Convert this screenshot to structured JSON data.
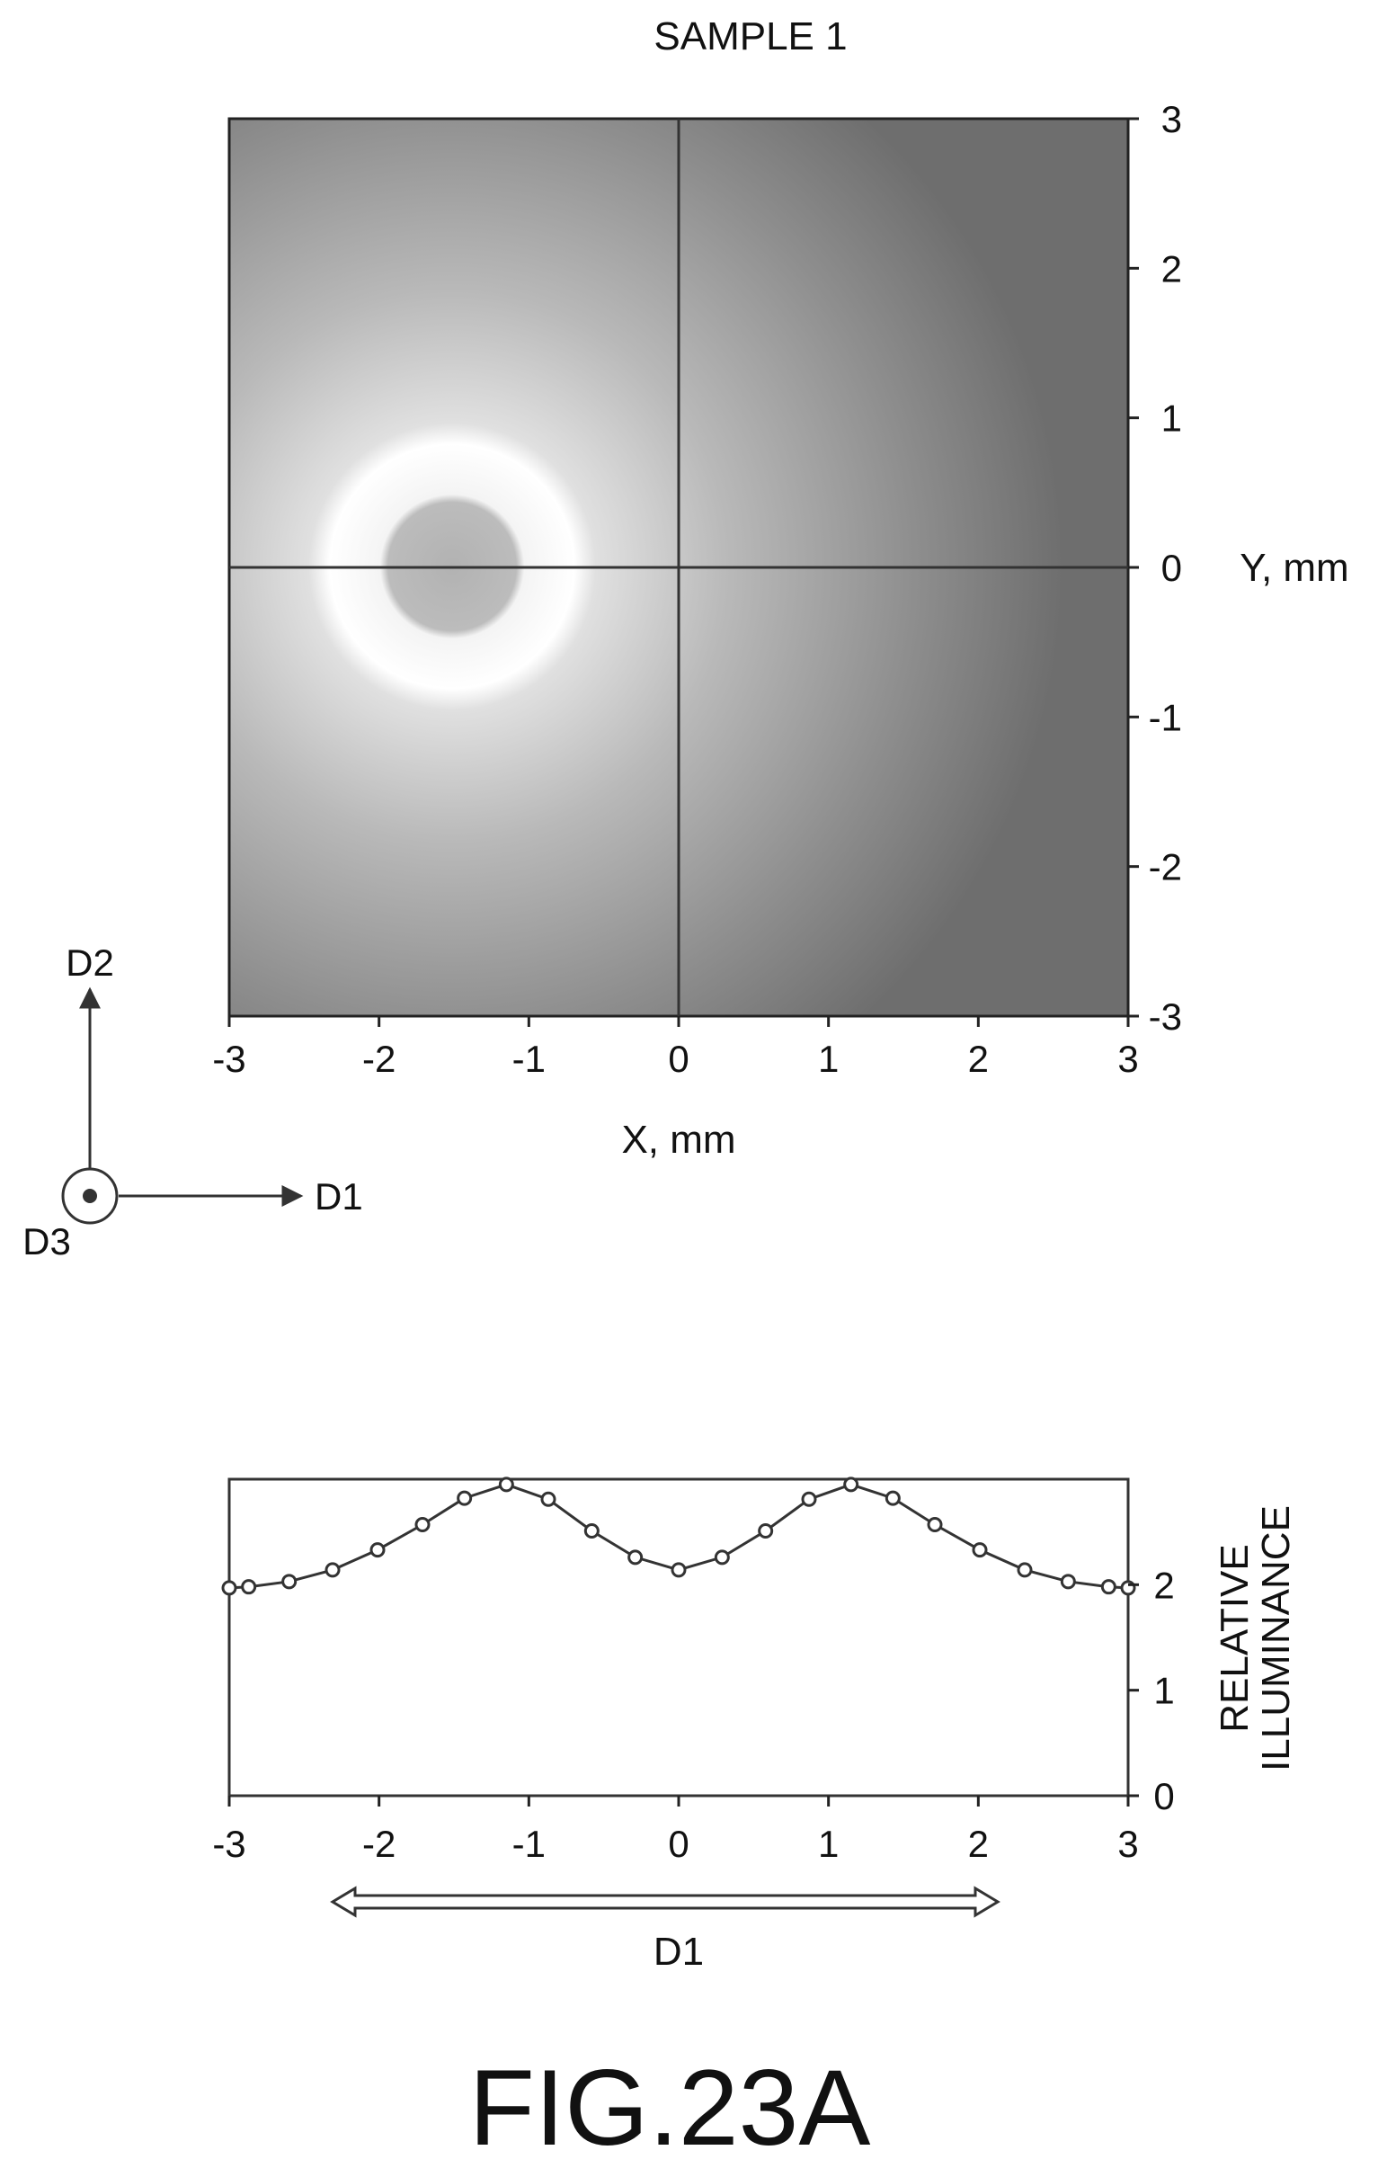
{
  "figure_title": "FIG.23A",
  "chart_data": [
    {
      "type": "heatmap",
      "title": "SAMPLE 1",
      "xlabel": "X, mm",
      "ylabel": "Y, mm",
      "xlim": [
        -3,
        3
      ],
      "ylim": [
        -3,
        3
      ],
      "xticks": [
        "-3",
        "-2",
        "-1",
        "0",
        "1",
        "2",
        "3"
      ],
      "yticks": [
        "3",
        "2",
        "1",
        "0",
        "-1",
        "-2",
        "-3"
      ],
      "description_of_pattern": {
        "ring_inner_radius_mm": 0.8,
        "ring_outer_radius_mm": 1.45,
        "center_level": "medium",
        "ring_level": "brightest",
        "edge_level": "darkest"
      },
      "crosshair": {
        "x": 0,
        "y": 0
      }
    },
    {
      "type": "line",
      "title": "",
      "xlabel": "",
      "ylabel": "RELATIVE\nILLUMINANCE",
      "ylabel_lines": [
        "RELATIVE",
        "ILLUMINANCE"
      ],
      "xlim": [
        -3,
        3
      ],
      "ylim": [
        0,
        3
      ],
      "xticks": [
        "-3",
        "-2",
        "-1",
        "0",
        "1",
        "2",
        "3"
      ],
      "yticks": [
        "2",
        "1",
        "0"
      ],
      "series": [
        {
          "name": "",
          "x": [
            -3.0,
            -2.87,
            -2.6,
            -2.31,
            -2.01,
            -1.71,
            -1.43,
            -1.15,
            -0.87,
            -0.58,
            -0.29,
            0.0,
            0.29,
            0.58,
            0.87,
            1.15,
            1.43,
            1.71,
            2.01,
            2.31,
            2.6,
            2.87,
            3.0
          ],
          "y": [
            1.97,
            1.98,
            2.03,
            2.14,
            2.33,
            2.57,
            2.82,
            2.95,
            2.81,
            2.51,
            2.26,
            2.14,
            2.26,
            2.51,
            2.81,
            2.95,
            2.82,
            2.57,
            2.33,
            2.14,
            2.03,
            1.98,
            1.97
          ]
        }
      ]
    }
  ],
  "axes_diagram": {
    "d1": "D1",
    "d2": "D2",
    "d3": "D3"
  },
  "direction_arrow_label": "D1"
}
